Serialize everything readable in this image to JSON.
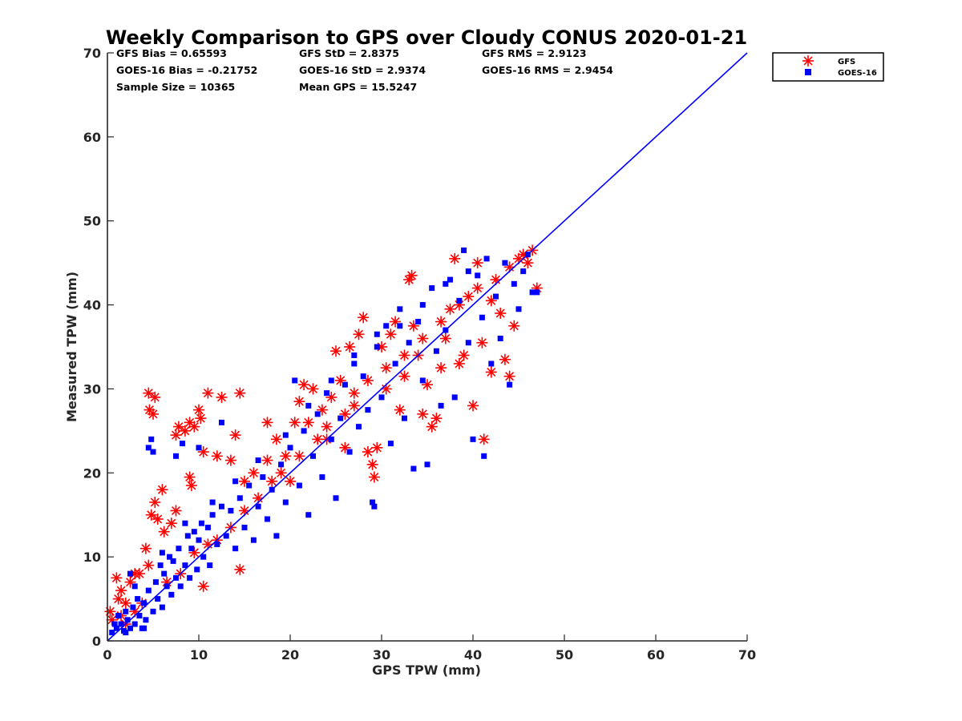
{
  "chart_data": {
    "type": "scatter",
    "title": "Weekly Comparison to GPS over Cloudy CONUS 2020-01-21",
    "xlabel": "GPS TPW (mm)",
    "ylabel": "Measured TPW (mm)",
    "xlim": [
      0,
      70
    ],
    "ylim": [
      0,
      70
    ],
    "xticks": [
      0,
      10,
      20,
      30,
      40,
      50,
      60,
      70
    ],
    "yticks": [
      0,
      10,
      20,
      30,
      40,
      50,
      60,
      70
    ],
    "grid": false,
    "legend_position": "outside-top-right",
    "stats": [
      [
        "GFS Bias = 0.65593",
        "GFS StD = 2.8375",
        "GFS RMS = 2.9123"
      ],
      [
        "GOES-16 Bias = -0.21752",
        "GOES-16 StD = 2.9374",
        "GOES-16 RMS = 2.9454"
      ],
      [
        "Sample Size = 10365",
        "Mean GPS = 15.5247"
      ]
    ],
    "reference_line": {
      "x": [
        0,
        70
      ],
      "y": [
        0,
        70
      ],
      "color": "#0000ff"
    },
    "series": [
      {
        "name": "GFS",
        "marker": "asterisk",
        "color": "#ff0000",
        "points": [
          [
            0.3,
            3.5
          ],
          [
            0.5,
            2.5
          ],
          [
            1.0,
            7.5
          ],
          [
            1.2,
            5.0
          ],
          [
            1.5,
            6.0
          ],
          [
            2.0,
            4.5
          ],
          [
            2.5,
            7.0
          ],
          [
            3.0,
            8.0
          ],
          [
            3.5,
            8.0
          ],
          [
            3.8,
            4.5
          ],
          [
            4.2,
            11.0
          ],
          [
            4.5,
            9.0
          ],
          [
            4.5,
            29.5
          ],
          [
            4.6,
            27.5
          ],
          [
            5.0,
            27.0
          ],
          [
            5.2,
            29.0
          ],
          [
            4.8,
            15.0
          ],
          [
            5.2,
            16.5
          ],
          [
            5.5,
            14.5
          ],
          [
            6.0,
            18.0
          ],
          [
            6.2,
            13.0
          ],
          [
            7.0,
            14.0
          ],
          [
            7.5,
            15.5
          ],
          [
            7.5,
            24.5
          ],
          [
            7.8,
            25.5
          ],
          [
            8.5,
            25.0
          ],
          [
            9.0,
            26.0
          ],
          [
            9.5,
            25.5
          ],
          [
            9.0,
            19.5
          ],
          [
            9.2,
            18.5
          ],
          [
            10.0,
            27.5
          ],
          [
            10.2,
            26.5
          ],
          [
            10.5,
            22.5
          ],
          [
            11.0,
            29.5
          ],
          [
            12.0,
            22.0
          ],
          [
            12.5,
            29.0
          ],
          [
            13.5,
            21.5
          ],
          [
            14.0,
            24.5
          ],
          [
            14.5,
            29.5
          ],
          [
            15.0,
            19.0
          ],
          [
            16.0,
            20.0
          ],
          [
            17.5,
            21.5
          ],
          [
            17.5,
            26.0
          ],
          [
            18.5,
            24.0
          ],
          [
            19.5,
            22.0
          ],
          [
            20.0,
            19.0
          ],
          [
            20.5,
            26.0
          ],
          [
            21.0,
            28.5
          ],
          [
            21.5,
            30.5
          ],
          [
            22.0,
            26.0
          ],
          [
            22.5,
            30.0
          ],
          [
            23.5,
            27.5
          ],
          [
            24.0,
            24.0
          ],
          [
            24.5,
            29.0
          ],
          [
            25.0,
            34.5
          ],
          [
            25.5,
            31.0
          ],
          [
            26.0,
            23.0
          ],
          [
            26.5,
            35.0
          ],
          [
            27.0,
            28.0
          ],
          [
            27.5,
            36.5
          ],
          [
            28.0,
            38.5
          ],
          [
            28.5,
            22.5
          ],
          [
            29.0,
            21.0
          ],
          [
            29.2,
            19.5
          ],
          [
            29.5,
            23.0
          ],
          [
            30.0,
            35.0
          ],
          [
            30.5,
            30.0
          ],
          [
            31.0,
            36.5
          ],
          [
            31.5,
            38.0
          ],
          [
            32.0,
            27.5
          ],
          [
            32.5,
            31.5
          ],
          [
            33.0,
            43.0
          ],
          [
            33.3,
            43.5
          ],
          [
            33.5,
            37.5
          ],
          [
            34.0,
            34.0
          ],
          [
            34.5,
            27.0
          ],
          [
            35.0,
            30.5
          ],
          [
            35.5,
            25.5
          ],
          [
            36.0,
            26.5
          ],
          [
            36.5,
            32.5
          ],
          [
            37.0,
            36.0
          ],
          [
            37.5,
            39.5
          ],
          [
            38.0,
            45.5
          ],
          [
            38.5,
            33.0
          ],
          [
            39.0,
            34.0
          ],
          [
            39.5,
            41.0
          ],
          [
            40.0,
            28.0
          ],
          [
            40.5,
            45.0
          ],
          [
            41.0,
            35.5
          ],
          [
            41.2,
            24.0
          ],
          [
            42.0,
            32.0
          ],
          [
            42.5,
            43.0
          ],
          [
            43.0,
            39.0
          ],
          [
            43.5,
            33.5
          ],
          [
            44.0,
            44.5
          ],
          [
            44.0,
            31.5
          ],
          [
            44.5,
            37.5
          ],
          [
            45.0,
            45.5
          ],
          [
            45.5,
            46.0
          ],
          [
            46.0,
            45.0
          ],
          [
            46.5,
            46.5
          ],
          [
            47.0,
            42.0
          ],
          [
            11.0,
            11.5
          ],
          [
            12.0,
            12.0
          ],
          [
            13.5,
            13.5
          ],
          [
            15.0,
            15.5
          ],
          [
            16.5,
            17.0
          ],
          [
            18.0,
            19.0
          ],
          [
            19.0,
            20.0
          ],
          [
            21.0,
            22.0
          ],
          [
            23.0,
            24.0
          ],
          [
            24.0,
            25.5
          ],
          [
            26.0,
            27.0
          ],
          [
            27.0,
            29.5
          ],
          [
            28.5,
            31.0
          ],
          [
            30.5,
            32.5
          ],
          [
            32.5,
            34.0
          ],
          [
            34.5,
            36.0
          ],
          [
            36.5,
            38.0
          ],
          [
            38.5,
            40.0
          ],
          [
            40.5,
            42.0
          ],
          [
            42.0,
            40.5
          ],
          [
            8.0,
            8.0
          ],
          [
            6.5,
            7.0
          ],
          [
            9.5,
            10.5
          ],
          [
            3.0,
            3.5
          ],
          [
            2.0,
            2.0
          ],
          [
            1.5,
            3.0
          ],
          [
            10.5,
            6.5
          ],
          [
            14.5,
            8.5
          ]
        ]
      },
      {
        "name": "GOES-16",
        "marker": "square",
        "color": "#0000ff",
        "points": [
          [
            0.5,
            1.0
          ],
          [
            0.8,
            2.0
          ],
          [
            1.0,
            1.5
          ],
          [
            1.2,
            3.0
          ],
          [
            1.5,
            2.0
          ],
          [
            1.8,
            1.2
          ],
          [
            2.0,
            3.5
          ],
          [
            2.2,
            2.5
          ],
          [
            2.5,
            1.5
          ],
          [
            2.8,
            4.0
          ],
          [
            3.0,
            2.0
          ],
          [
            3.3,
            5.0
          ],
          [
            3.5,
            3.0
          ],
          [
            3.8,
            1.5
          ],
          [
            4.0,
            4.5
          ],
          [
            4.2,
            2.5
          ],
          [
            4.5,
            6.0
          ],
          [
            4.5,
            23.0
          ],
          [
            4.8,
            24.0
          ],
          [
            5.0,
            22.5
          ],
          [
            5.0,
            3.5
          ],
          [
            5.3,
            7.0
          ],
          [
            5.5,
            5.0
          ],
          [
            5.8,
            9.0
          ],
          [
            6.0,
            4.0
          ],
          [
            6.2,
            8.0
          ],
          [
            6.5,
            6.5
          ],
          [
            6.8,
            10.0
          ],
          [
            7.0,
            5.5
          ],
          [
            7.2,
            9.5
          ],
          [
            7.5,
            7.5
          ],
          [
            7.5,
            22.0
          ],
          [
            7.8,
            11.0
          ],
          [
            8.0,
            6.5
          ],
          [
            8.2,
            23.5
          ],
          [
            8.5,
            9.0
          ],
          [
            8.8,
            12.5
          ],
          [
            9.0,
            7.5
          ],
          [
            9.2,
            11.0
          ],
          [
            9.5,
            13.0
          ],
          [
            9.8,
            8.5
          ],
          [
            10.0,
            12.0
          ],
          [
            10.0,
            23.0
          ],
          [
            10.3,
            14.0
          ],
          [
            10.5,
            10.0
          ],
          [
            11.0,
            13.5
          ],
          [
            11.2,
            9.0
          ],
          [
            11.5,
            15.0
          ],
          [
            12.0,
            11.5
          ],
          [
            12.5,
            26.0
          ],
          [
            12.5,
            16.0
          ],
          [
            13.0,
            12.5
          ],
          [
            13.5,
            15.5
          ],
          [
            14.0,
            11.0
          ],
          [
            14.5,
            17.0
          ],
          [
            15.0,
            13.5
          ],
          [
            15.5,
            18.5
          ],
          [
            16.0,
            12.0
          ],
          [
            16.5,
            16.0
          ],
          [
            17.0,
            19.5
          ],
          [
            17.5,
            14.5
          ],
          [
            18.0,
            18.0
          ],
          [
            18.5,
            12.5
          ],
          [
            19.0,
            21.0
          ],
          [
            19.5,
            16.5
          ],
          [
            20.0,
            23.0
          ],
          [
            20.5,
            31.0
          ],
          [
            21.0,
            18.5
          ],
          [
            21.5,
            25.0
          ],
          [
            22.0,
            15.0
          ],
          [
            22.5,
            22.0
          ],
          [
            23.0,
            27.0
          ],
          [
            23.5,
            19.5
          ],
          [
            24.0,
            29.5
          ],
          [
            24.5,
            24.0
          ],
          [
            25.0,
            17.0
          ],
          [
            25.5,
            26.5
          ],
          [
            26.0,
            30.5
          ],
          [
            26.5,
            22.5
          ],
          [
            27.0,
            33.0
          ],
          [
            27.5,
            25.5
          ],
          [
            28.0,
            31.5
          ],
          [
            28.5,
            27.5
          ],
          [
            29.0,
            16.5
          ],
          [
            29.2,
            16.0
          ],
          [
            29.5,
            35.0
          ],
          [
            30.0,
            29.0
          ],
          [
            30.5,
            37.5
          ],
          [
            31.0,
            23.5
          ],
          [
            31.5,
            33.0
          ],
          [
            32.0,
            39.5
          ],
          [
            32.5,
            26.5
          ],
          [
            33.0,
            35.5
          ],
          [
            33.5,
            20.5
          ],
          [
            34.0,
            38.0
          ],
          [
            34.5,
            31.0
          ],
          [
            35.0,
            21.0
          ],
          [
            35.5,
            42.0
          ],
          [
            36.0,
            34.5
          ],
          [
            36.5,
            28.0
          ],
          [
            37.0,
            37.0
          ],
          [
            37.5,
            43.0
          ],
          [
            38.0,
            29.0
          ],
          [
            38.5,
            40.5
          ],
          [
            39.0,
            46.5
          ],
          [
            39.5,
            35.5
          ],
          [
            40.0,
            24.0
          ],
          [
            40.5,
            43.5
          ],
          [
            41.0,
            38.5
          ],
          [
            41.2,
            22.0
          ],
          [
            41.5,
            45.5
          ],
          [
            42.0,
            33.0
          ],
          [
            42.5,
            41.0
          ],
          [
            43.0,
            36.0
          ],
          [
            43.5,
            45.0
          ],
          [
            44.0,
            30.5
          ],
          [
            44.5,
            42.5
          ],
          [
            45.0,
            39.5
          ],
          [
            45.5,
            44.0
          ],
          [
            46.0,
            46.0
          ],
          [
            46.5,
            41.5
          ],
          [
            47.0,
            41.5
          ],
          [
            2.5,
            8.0
          ],
          [
            3.0,
            6.5
          ],
          [
            6.0,
            10.5
          ],
          [
            8.5,
            14.0
          ],
          [
            11.5,
            16.5
          ],
          [
            14.0,
            19.0
          ],
          [
            16.5,
            21.5
          ],
          [
            19.5,
            24.5
          ],
          [
            22.0,
            28.0
          ],
          [
            24.5,
            31.0
          ],
          [
            27.0,
            34.0
          ],
          [
            29.5,
            36.5
          ],
          [
            32.0,
            37.5
          ],
          [
            34.5,
            40.0
          ],
          [
            37.0,
            42.5
          ],
          [
            39.5,
            44.0
          ],
          [
            2.0,
            1.0
          ],
          [
            4.0,
            1.5
          ]
        ]
      }
    ]
  }
}
